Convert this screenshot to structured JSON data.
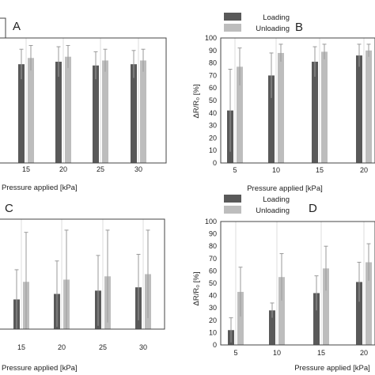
{
  "colors": {
    "loading": "#595959",
    "unloading": "#bdbdbd",
    "grid": "#dcdcdc",
    "axis": "#444444",
    "error_bar": "#9a9a9a"
  },
  "chart_data": [
    {
      "panel": "A",
      "type": "bar",
      "categories": [
        "15",
        "20",
        "25",
        "30"
      ],
      "series": [
        {
          "name": "",
          "values": [
            79,
            81,
            78,
            79
          ],
          "errors": [
            12,
            12,
            11,
            11
          ]
        },
        {
          "name": "",
          "values": [
            84,
            85,
            82,
            82
          ],
          "errors": [
            10,
            9,
            9,
            9
          ]
        }
      ],
      "xlabel": "Pressure applied [kPa]",
      "ylabel": "",
      "ylim": [
        0,
        100
      ],
      "grid": true,
      "legend": "none"
    },
    {
      "panel": "B",
      "type": "bar",
      "categories": [
        "5",
        "10",
        "15",
        "20"
      ],
      "series": [
        {
          "name": "Loading",
          "values": [
            42,
            70,
            81,
            86
          ],
          "errors": [
            33,
            18,
            12,
            9
          ]
        },
        {
          "name": "Unloading",
          "values": [
            77,
            88,
            89,
            90
          ],
          "errors": [
            15,
            7,
            6,
            5
          ]
        }
      ],
      "yticks": [
        "0",
        "10",
        "20",
        "30",
        "40",
        "50",
        "60",
        "70",
        "80",
        "90",
        "100"
      ],
      "xlabel": "Pressure applied [kPa]",
      "ylabel": "ΔR/R₀ [%]",
      "ylim": [
        0,
        100
      ],
      "grid": true,
      "legend": "top"
    },
    {
      "panel": "C",
      "type": "bar",
      "categories": [
        "15",
        "20",
        "25",
        "30"
      ],
      "series": [
        {
          "name": "",
          "values": [
            27,
            32,
            35,
            38
          ],
          "errors": [
            27,
            30,
            32,
            30
          ]
        },
        {
          "name": "",
          "values": [
            43,
            45,
            48,
            50
          ],
          "errors": [
            45,
            45,
            42,
            40
          ]
        }
      ],
      "xlabel": "Pressure applied [kPa]",
      "ylabel": "",
      "ylim": [
        0,
        100
      ],
      "grid": true,
      "legend": "none"
    },
    {
      "panel": "D",
      "type": "bar",
      "categories": [
        "5",
        "10",
        "15",
        "20"
      ],
      "series": [
        {
          "name": "Loading",
          "values": [
            12,
            28,
            42,
            51
          ],
          "errors": [
            10,
            6,
            14,
            16
          ]
        },
        {
          "name": "Unloading",
          "values": [
            43,
            55,
            62,
            67
          ],
          "errors": [
            20,
            19,
            18,
            15
          ]
        }
      ],
      "yticks": [
        "0",
        "10",
        "20",
        "30",
        "40",
        "50",
        "60",
        "70",
        "80",
        "90",
        "100"
      ],
      "xlabel": "Pressure applied [kPa]",
      "ylabel": "ΔR/R₀ [%]",
      "ylim": [
        0,
        100
      ],
      "grid": true,
      "legend": "top"
    }
  ]
}
